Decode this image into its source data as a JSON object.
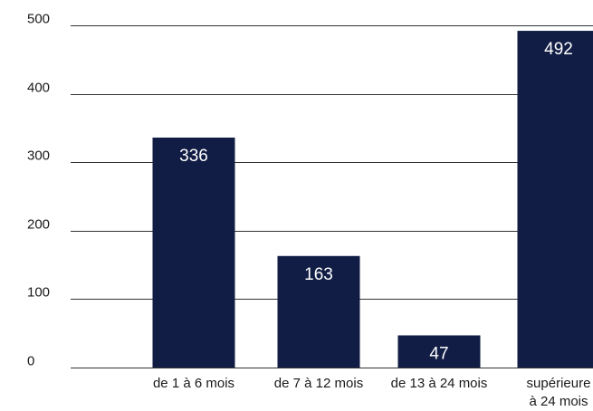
{
  "chart_data": {
    "type": "bar",
    "categories": [
      [
        "de 1 à 6 mois"
      ],
      [
        "de 7 à 12 mois"
      ],
      [
        "de 13 à 24 mois"
      ],
      [
        "supérieure",
        "à 24 mois"
      ]
    ],
    "values": [
      336,
      163,
      47,
      492
    ],
    "data_labels": [
      "336",
      "163",
      "47",
      "492"
    ],
    "ylim": [
      0,
      500
    ],
    "yticks": [
      0,
      100,
      200,
      300,
      400,
      500
    ],
    "ytick_labels": [
      "0",
      "100",
      "200",
      "300",
      "400",
      "500"
    ],
    "grid": true,
    "legend": "none",
    "colors": {
      "bar": "#121d45",
      "grid": "#333333",
      "label": "#ffffff",
      "text": "#1a1a1a"
    }
  }
}
